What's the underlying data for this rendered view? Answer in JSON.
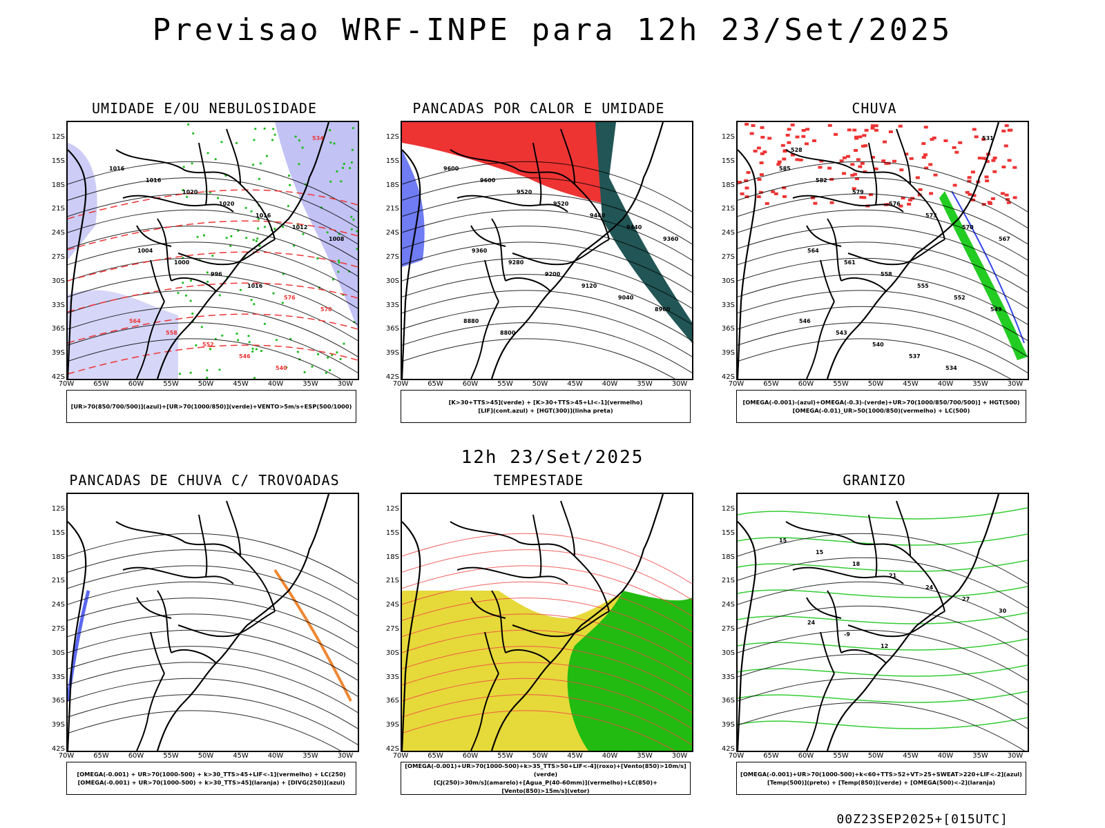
{
  "header": {
    "title": "Previsao WRF-INPE  para 12h 23/Set/2025",
    "middle_title": "12h 23/Set/2025"
  },
  "footer": {
    "run": "00Z23SEP2025+[015UTC]"
  },
  "axes": {
    "lat_labels": [
      "12S",
      "15S",
      "18S",
      "21S",
      "24S",
      "27S",
      "30S",
      "33S",
      "36S",
      "39S",
      "42S"
    ],
    "lon_labels": [
      "70W",
      "65W",
      "60W",
      "55W",
      "50W",
      "45W",
      "40W",
      "35W",
      "30W"
    ]
  },
  "panels": [
    {
      "id": "umidade",
      "title": "UMIDADE E/OU NEBULOSIDADE",
      "legend": [
        "[UR>70(850/700/500)](azul)+[UR>70(1000/850)](verde)+VENTO>5m/s+ESP(500/1000)"
      ],
      "contour_labels": [
        "1016",
        "1016",
        "1020",
        "1020",
        "1016",
        "1012",
        "1008",
        "1004",
        "1000",
        "996",
        "1016",
        "576",
        "570",
        "564",
        "558",
        "552",
        "546",
        "540",
        "534"
      ],
      "colors": {
        "moisture_upper": "#9999ee",
        "moisture_lower": "#22bb22",
        "thickness": "#ee3333"
      }
    },
    {
      "id": "pancadas",
      "title": "PANCADAS POR CALOR E UMIDADE",
      "legend": [
        "[K>30+TTS>45](verde) + [K>30+TTS>45+LI<-1](vermelho)",
        "[LIF](cont.azul) + [HGT(300)](linha preta)"
      ],
      "contour_labels": [
        "9600",
        "9600",
        "9520",
        "9520",
        "9440",
        "9440",
        "9360",
        "9360",
        "9280",
        "9200",
        "9120",
        "9040",
        "8960",
        "8880",
        "8800"
      ],
      "colors": {
        "unstable": "#ee3333",
        "humid": "#225555",
        "lifted": "#3344ee"
      }
    },
    {
      "id": "chuva",
      "title": "CHUVA",
      "legend": [
        "[OMEGA(-0.001)-(azul)+OMEGA(-0.3)-(verde)+UR>70(1000/850/700/500)] + HGT(500)",
        "[OMEGA(-0.01)_UR>50(1000/850)(vermelho) + LC(500)"
      ],
      "contour_labels": [
        "585",
        "582",
        "579",
        "576",
        "573",
        "570",
        "567",
        "564",
        "561",
        "558",
        "555",
        "552",
        "549",
        "546",
        "543",
        "540",
        "537",
        "534",
        "531",
        "528"
      ],
      "colors": {
        "rain": "#ee3333",
        "omega_low": "#3344ee",
        "omega_high": "#22cc22"
      }
    },
    {
      "id": "trovoadas",
      "title": "PANCADAS DE CHUVA C/ TROVOADAS",
      "legend": [
        "[OMEGA(-0.001) + UR>70(1000-500) + k>30_TTS>45+LIF<-1](vermelho) + LC(250)",
        "[OMEGA(-0.001) + UR>70(1000-500) + k>30_TTS>45](laranja) + [DIVG(250)](azul)"
      ],
      "contour_labels": [],
      "colors": {
        "orange": "#ee8833",
        "blue": "#3344ee"
      }
    },
    {
      "id": "tempestade",
      "title": "TEMPESTADE",
      "legend": [
        "[OMEGA(-0.001)+UR>70(1000-500)+k>35_TTS>50+LIF<-4](roxo)+[Vento(850)>10m/s](verde)",
        "[CJ(250)>30m/s](amarelo)+[Agua_P(40-60mm)](vermelho)+LC(850)+[Vento(850)>15m/s](vetor)"
      ],
      "contour_labels": [],
      "colors": {
        "jet": "#e6d93a",
        "wind": "#22bb11",
        "stream": "#ee4444"
      }
    },
    {
      "id": "granizo",
      "title": "GRANIZO",
      "legend": [
        "[OMEGA(-0.001)+UR>70(1000-500)+k<60+TTS>52+VT>25+SWEAT>220+LIF<-2](azul)",
        "[Temp(500)](preto) + [Temp(850)](verde) + [OMEGA(500)<-2](laranja)"
      ],
      "contour_labels": [
        "15",
        "15",
        "18",
        "21",
        "24",
        "27",
        "30",
        "24",
        "-9",
        "12"
      ],
      "colors": {
        "t850": "#33cc33",
        "omega": "#ee8833"
      }
    }
  ]
}
